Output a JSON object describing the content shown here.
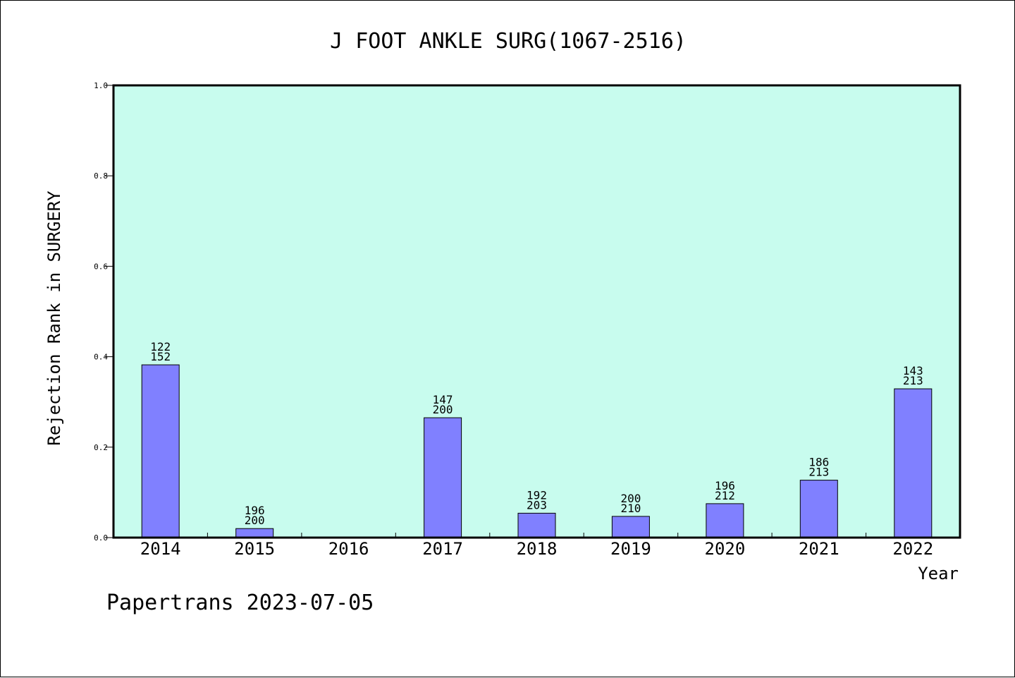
{
  "footer": "Papertrans 2023-07-05",
  "chart_data": {
    "type": "bar",
    "title": "J FOOT ANKLE SURG(1067-2516)",
    "xlabel": "Year",
    "ylabel": "Rejection Rank in SURGERY",
    "ylim": [
      0,
      1.0
    ],
    "yticks": [
      "0.0",
      "0.2",
      "0.4",
      "0.6",
      "0.8",
      "1.0"
    ],
    "grid": false,
    "categories": [
      "2014",
      "2015",
      "2016",
      "2017",
      "2018",
      "2019",
      "2020",
      "2021",
      "2022"
    ],
    "values": [
      0.382,
      0.02,
      null,
      0.265,
      0.054,
      0.047,
      0.075,
      0.127,
      0.329
    ],
    "label_top": [
      "122",
      "196",
      "",
      "147",
      "192",
      "200",
      "196",
      "186",
      "143"
    ],
    "label_bottom": [
      "152",
      "200",
      "",
      "200",
      "203",
      "210",
      "212",
      "213",
      "213"
    ],
    "colors": {
      "plot_bg": "#c8fcee",
      "bar": "#8080ff",
      "axis": "#000000"
    }
  }
}
